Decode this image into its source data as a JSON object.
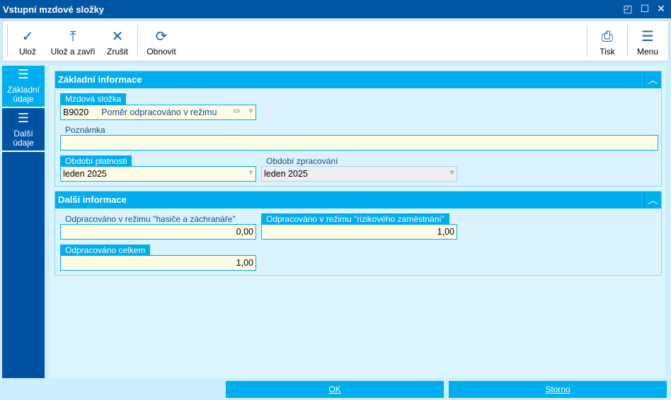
{
  "window": {
    "title": "Vstupní mzdové složky"
  },
  "toolbar": {
    "save": "Ulož",
    "save_close": "Ulož a zavři",
    "cancel": "Zrušit",
    "refresh": "Obnovit",
    "print": "Tisk",
    "menu": "Menu"
  },
  "sidebar": {
    "items": [
      {
        "label1": "Základní",
        "label2": "údaje",
        "active": true
      },
      {
        "label1": "Další",
        "label2": "údaje",
        "active": false
      }
    ]
  },
  "basic": {
    "title": "Základní informace",
    "component_label": "Mzdová složka",
    "component_code": "B9020",
    "component_name": "Poměr odpracováno v režimu",
    "note_label": "Poznámka",
    "note_value": "",
    "validity_label": "Období platnosti",
    "validity_value": "leden 2025",
    "processing_label": "Období zpracování",
    "processing_value": "leden 2025"
  },
  "more": {
    "title": "Další informace",
    "firefighter_label": "Odpracováno v režimu \"hasiče a záchranáře\"",
    "firefighter_value": "0,00",
    "risky_label": "Odpracováno v režimu \"rizikového zaměstnání\"",
    "risky_value": "1,00",
    "total_label": "Odpracováno celkem",
    "total_value": "1,00"
  },
  "footer": {
    "ok": "OK",
    "cancel": "Storno"
  },
  "colors": {
    "titlebar": "#0055a4",
    "accent": "#00adef",
    "sidebar": "#0052a3",
    "input": "#fffde6"
  }
}
